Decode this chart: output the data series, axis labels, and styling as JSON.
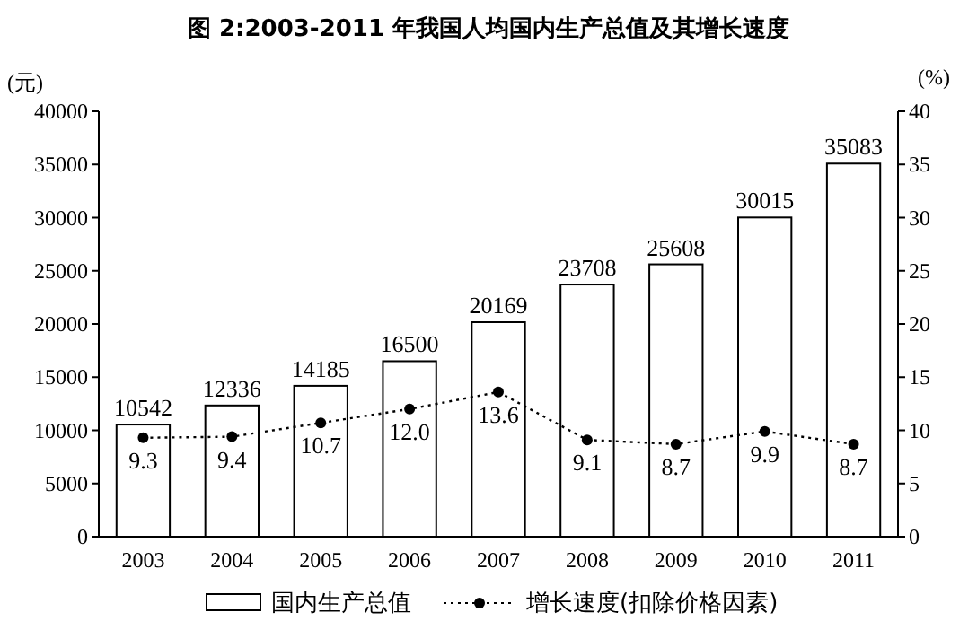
{
  "chart_data": {
    "type": "bar",
    "title": "图 2:2003-2011 年我国人均国内生产总值及其增长速度",
    "ylabel": "(元)",
    "y2label": "(%)",
    "categories": [
      "2003",
      "2004",
      "2005",
      "2006",
      "2007",
      "2008",
      "2009",
      "2010",
      "2011"
    ],
    "series": [
      {
        "name": "国内生产总值",
        "color": "#ffffff",
        "values": [
          10542,
          12336,
          14185,
          16500,
          20169,
          23708,
          25608,
          30015,
          35083
        ]
      },
      {
        "name": "增长速度(扣除价格因素)",
        "type": "line",
        "axis": "y2",
        "color": "#000000",
        "marker": "circle",
        "line_style": "dotted",
        "values": [
          9.3,
          9.4,
          10.7,
          12.0,
          13.6,
          9.1,
          8.7,
          9.9,
          8.7
        ],
        "value_labels": [
          "9.3",
          "9.4",
          "10.7",
          "12.0",
          "13.6",
          "9.1",
          "8.7",
          "9.9",
          "8.7"
        ]
      }
    ],
    "ylim": [
      0,
      40000
    ],
    "yticks": [
      0,
      5000,
      10000,
      15000,
      20000,
      25000,
      30000,
      35000,
      40000
    ],
    "y2lim": [
      0,
      40
    ],
    "y2ticks": [
      0,
      5,
      10,
      15,
      20,
      25,
      30,
      35,
      40
    ],
    "data_labels": true,
    "legend": "bottom",
    "grid": false
  }
}
